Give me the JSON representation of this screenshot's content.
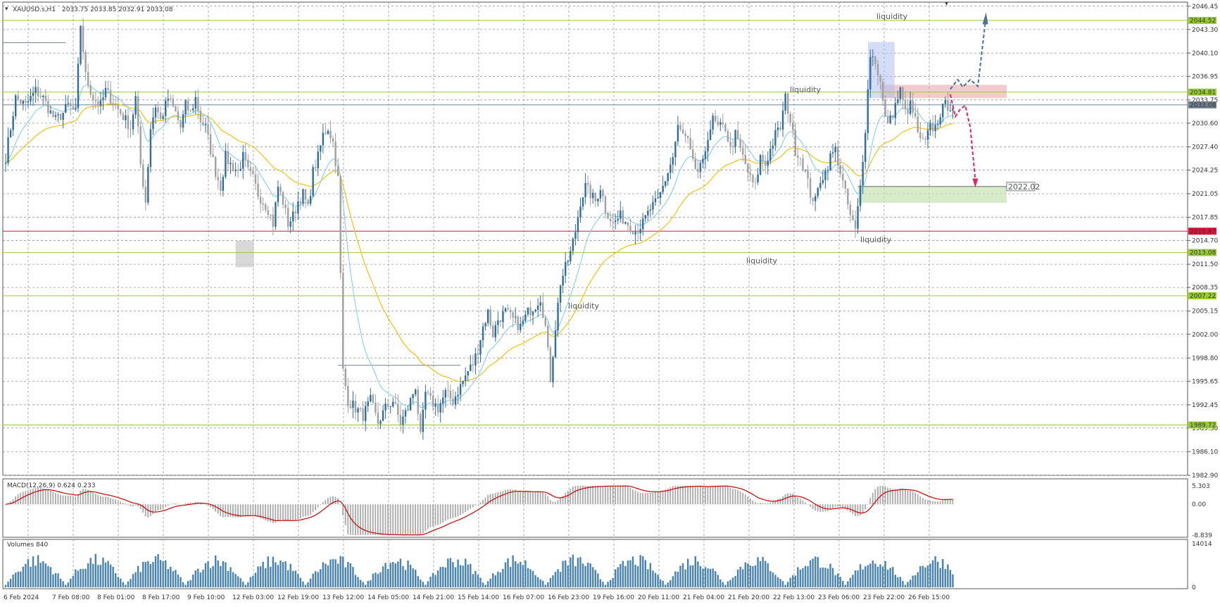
{
  "header": {
    "symbol": "XAUUSD.s,H1",
    "ohlc": "2033.75 2033.85 2032.91 2033.08"
  },
  "chart_data": [
    {
      "type": "candlestick",
      "name": "price",
      "symbol": "XAUUSD.s,H1",
      "ylim": [
        1982.9,
        2047.0
      ],
      "y_ticks": [
        "2046.45",
        "2043.30",
        "2040.10",
        "2036.95",
        "2033.75",
        "2030.60",
        "2027.40",
        "2024.25",
        "2021.05",
        "2017.85",
        "2014.70",
        "2011.50",
        "2008.35",
        "2005.15",
        "2002.00",
        "1998.80",
        "1995.65",
        "1992.45",
        "1989.30",
        "1986.10",
        "1982.90"
      ],
      "x_ticks": [
        "6 Feb 2024",
        "7 Feb 08:00",
        "8 Feb 01:00",
        "8 Feb 17:00",
        "9 Feb 10:00",
        "12 Feb 03:00",
        "12 Feb 19:00",
        "13 Feb 12:00",
        "14 Feb 05:00",
        "14 Feb 21:00",
        "15 Feb 14:00",
        "16 Feb 07:00",
        "16 Feb 23:00",
        "19 Feb 16:00",
        "20 Feb 11:00",
        "21 Feb 04:00",
        "21 Feb 20:00",
        "22 Feb 13:00",
        "23 Feb 06:00",
        "23 Feb 22:00",
        "26 Feb 15:00"
      ],
      "levels": [
        {
          "price": 2044.52,
          "label": "2044.52",
          "color": "#9acd32"
        },
        {
          "price": 2034.81,
          "label": "2034.81",
          "color": "#9acd32"
        },
        {
          "price": 2033.08,
          "label": "2033.08",
          "color": "#708090"
        },
        {
          "price": 2015.97,
          "label": "2015.97",
          "color": "#dc143c"
        },
        {
          "price": 2013.08,
          "label": "2013.08",
          "color": "#9acd32"
        },
        {
          "price": 2007.22,
          "label": "2007.22",
          "color": "#9acd32"
        },
        {
          "price": 1989.72,
          "label": "1989.72",
          "color": "#9acd32"
        }
      ],
      "target_level": {
        "price": 2022.02,
        "label": "2022.02"
      },
      "annotations": [
        "liquidity",
        "liquidity",
        "liquidity",
        "liquidity",
        "liquidity"
      ],
      "anchors": [
        [
          0,
          2026
        ],
        [
          4,
          2034
        ],
        [
          8,
          2033
        ],
        [
          12,
          2035
        ],
        [
          15,
          2034
        ],
        [
          18,
          2032
        ],
        [
          20,
          2031
        ],
        [
          23,
          2032
        ],
        [
          25,
          2033
        ],
        [
          28,
          2032
        ],
        [
          30,
          2044
        ],
        [
          32,
          2037
        ],
        [
          35,
          2034
        ],
        [
          38,
          2033
        ],
        [
          40,
          2035
        ],
        [
          42,
          2034
        ],
        [
          44,
          2033
        ],
        [
          46,
          2032
        ],
        [
          48,
          2031
        ],
        [
          50,
          2030
        ],
        [
          52,
          2034
        ],
        [
          54,
          2025
        ],
        [
          56,
          2020
        ],
        [
          58,
          2030
        ],
        [
          60,
          2033
        ],
        [
          62,
          2031
        ],
        [
          65,
          2034
        ],
        [
          68,
          2032
        ],
        [
          70,
          2030
        ],
        [
          72,
          2033
        ],
        [
          74,
          2032
        ],
        [
          76,
          2034
        ],
        [
          78,
          2031
        ],
        [
          80,
          2030
        ],
        [
          82,
          2027
        ],
        [
          84,
          2024
        ],
        [
          86,
          2022
        ],
        [
          88,
          2026
        ],
        [
          90,
          2025
        ],
        [
          93,
          2024
        ],
        [
          95,
          2026
        ],
        [
          97,
          2024
        ],
        [
          99,
          2023
        ],
        [
          101,
          2021
        ],
        [
          103,
          2020
        ],
        [
          105,
          2019
        ],
        [
          107,
          2017
        ],
        [
          109,
          2022
        ],
        [
          111,
          2020
        ],
        [
          113,
          2017
        ],
        [
          115,
          2018
        ],
        [
          117,
          2020
        ],
        [
          119,
          2021
        ],
        [
          121,
          2019
        ],
        [
          123,
          2024
        ],
        [
          125,
          2026
        ],
        [
          127,
          2029
        ],
        [
          129,
          2030
        ],
        [
          131,
          2028
        ],
        [
          133,
          2023
        ],
        [
          135,
          1997
        ],
        [
          137,
          1993
        ],
        [
          140,
          1992
        ],
        [
          143,
          1991
        ],
        [
          146,
          1993
        ],
        [
          149,
          1990
        ],
        [
          152,
          1992
        ],
        [
          155,
          1993
        ],
        [
          158,
          1990
        ],
        [
          161,
          1992
        ],
        [
          164,
          1995
        ],
        [
          166,
          1988
        ],
        [
          168,
          1994
        ],
        [
          170,
          1993
        ],
        [
          173,
          1992
        ],
        [
          176,
          1994
        ],
        [
          179,
          1993
        ],
        [
          182,
          1995
        ],
        [
          185,
          1997
        ],
        [
          187,
          1998
        ],
        [
          189,
          2000
        ],
        [
          191,
          2003
        ],
        [
          193,
          2005
        ],
        [
          195,
          2002
        ],
        [
          197,
          2004
        ],
        [
          200,
          2005
        ],
        [
          203,
          2004
        ],
        [
          206,
          2003
        ],
        [
          209,
          2005
        ],
        [
          212,
          2006
        ],
        [
          214,
          2007
        ],
        [
          216,
          2003
        ],
        [
          218,
          1996
        ],
        [
          220,
          2003
        ],
        [
          222,
          2009
        ],
        [
          224,
          2011
        ],
        [
          226,
          2013
        ],
        [
          228,
          2016
        ],
        [
          230,
          2020
        ],
        [
          232,
          2022
        ],
        [
          234,
          2021
        ],
        [
          236,
          2020
        ],
        [
          238,
          2022
        ],
        [
          240,
          2019
        ],
        [
          243,
          2017
        ],
        [
          246,
          2018
        ],
        [
          249,
          2017
        ],
        [
          252,
          2016
        ],
        [
          255,
          2017
        ],
        [
          258,
          2019
        ],
        [
          261,
          2020
        ],
        [
          264,
          2023
        ],
        [
          267,
          2026
        ],
        [
          269,
          2030
        ],
        [
          271,
          2029
        ],
        [
          273,
          2028
        ],
        [
          275,
          2025
        ],
        [
          277,
          2024
        ],
        [
          279,
          2025
        ],
        [
          281,
          2029
        ],
        [
          283,
          2031
        ],
        [
          285,
          2030
        ],
        [
          288,
          2030
        ],
        [
          290,
          2027
        ],
        [
          292,
          2029
        ],
        [
          295,
          2026
        ],
        [
          298,
          2023
        ],
        [
          300,
          2022
        ],
        [
          302,
          2026
        ],
        [
          304,
          2025
        ],
        [
          306,
          2027
        ],
        [
          308,
          2029
        ],
        [
          310,
          2030
        ],
        [
          312,
          2034
        ],
        [
          314,
          2031
        ],
        [
          316,
          2027
        ],
        [
          318,
          2026
        ],
        [
          320,
          2024
        ],
        [
          322,
          2021
        ],
        [
          324,
          2020
        ],
        [
          326,
          2023
        ],
        [
          328,
          2024
        ],
        [
          330,
          2026
        ],
        [
          332,
          2027
        ],
        [
          334,
          2024
        ],
        [
          336,
          2021
        ],
        [
          338,
          2018
        ],
        [
          340,
          2016
        ],
        [
          342,
          2022
        ],
        [
          344,
          2030
        ],
        [
          346,
          2040
        ],
        [
          348,
          2039
        ],
        [
          350,
          2036
        ],
        [
          352,
          2031
        ],
        [
          354,
          2031
        ],
        [
          356,
          2033
        ],
        [
          358,
          2035
        ],
        [
          360,
          2032
        ],
        [
          362,
          2033
        ],
        [
          364,
          2031
        ],
        [
          366,
          2028
        ],
        [
          368,
          2028
        ],
        [
          370,
          2030
        ],
        [
          372,
          2030
        ],
        [
          374,
          2032
        ],
        [
          376,
          2033
        ],
        [
          378,
          2033
        ]
      ]
    },
    {
      "type": "histogram",
      "name": "MACD",
      "title": "MACD(12,26,9) 0.624 0.233",
      "ylim": [
        -8.839,
        5.303
      ],
      "y_ticks": [
        "5.303",
        "0.00",
        "-8.839"
      ],
      "signal_color": "#cc0000",
      "bar_color": "#a9a9a9"
    },
    {
      "type": "bar",
      "name": "Volumes",
      "title": "Volumes 840",
      "ylim": [
        0,
        14014
      ],
      "y_ticks": [
        "14014",
        "0"
      ],
      "bar_color": "#4682b4"
    }
  ]
}
